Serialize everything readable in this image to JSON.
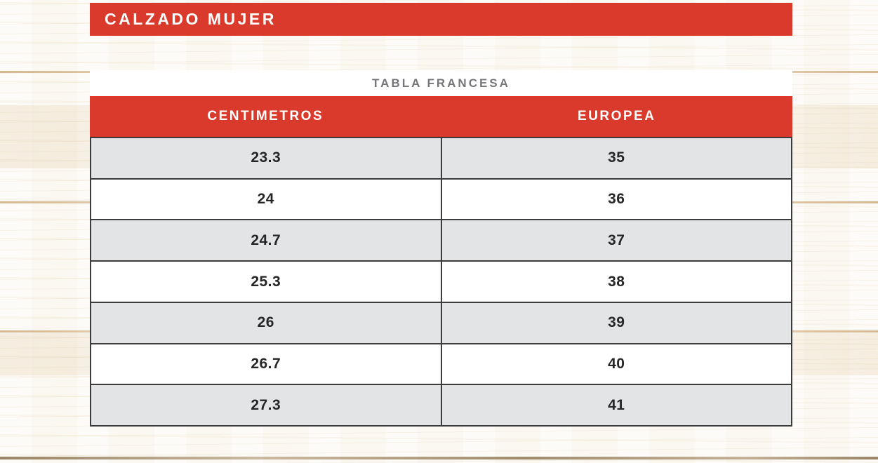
{
  "banner": {
    "title": "CALZADO MUJER"
  },
  "size_chart": {
    "subtitle": "TABLA FRANCESA",
    "columns": [
      "CENTIMETROS",
      "EUROPEA"
    ],
    "rows": [
      {
        "cm": "23.3",
        "eu": "35"
      },
      {
        "cm": "24",
        "eu": "36"
      },
      {
        "cm": "24.7",
        "eu": "37"
      },
      {
        "cm": "25.3",
        "eu": "38"
      },
      {
        "cm": "26",
        "eu": "39"
      },
      {
        "cm": "26.7",
        "eu": "40"
      },
      {
        "cm": "27.3",
        "eu": "41"
      }
    ]
  },
  "chart_data": {
    "type": "table",
    "title": "CALZADO MUJER",
    "subtitle": "TABLA FRANCESA",
    "columns": [
      "CENTIMETROS",
      "EUROPEA"
    ],
    "rows": [
      [
        "23.3",
        "35"
      ],
      [
        "24",
        "36"
      ],
      [
        "24.7",
        "37"
      ],
      [
        "25.3",
        "38"
      ],
      [
        "26",
        "39"
      ],
      [
        "26.7",
        "40"
      ],
      [
        "27.3",
        "41"
      ]
    ]
  },
  "colors": {
    "accent_red": "#d93a2b",
    "row_alt_gray": "#e3e4e6",
    "table_border": "#3c3c3c",
    "subtitle_gray": "#75767a",
    "text_dark": "#262626",
    "background_wood": "#fbf8f2"
  }
}
